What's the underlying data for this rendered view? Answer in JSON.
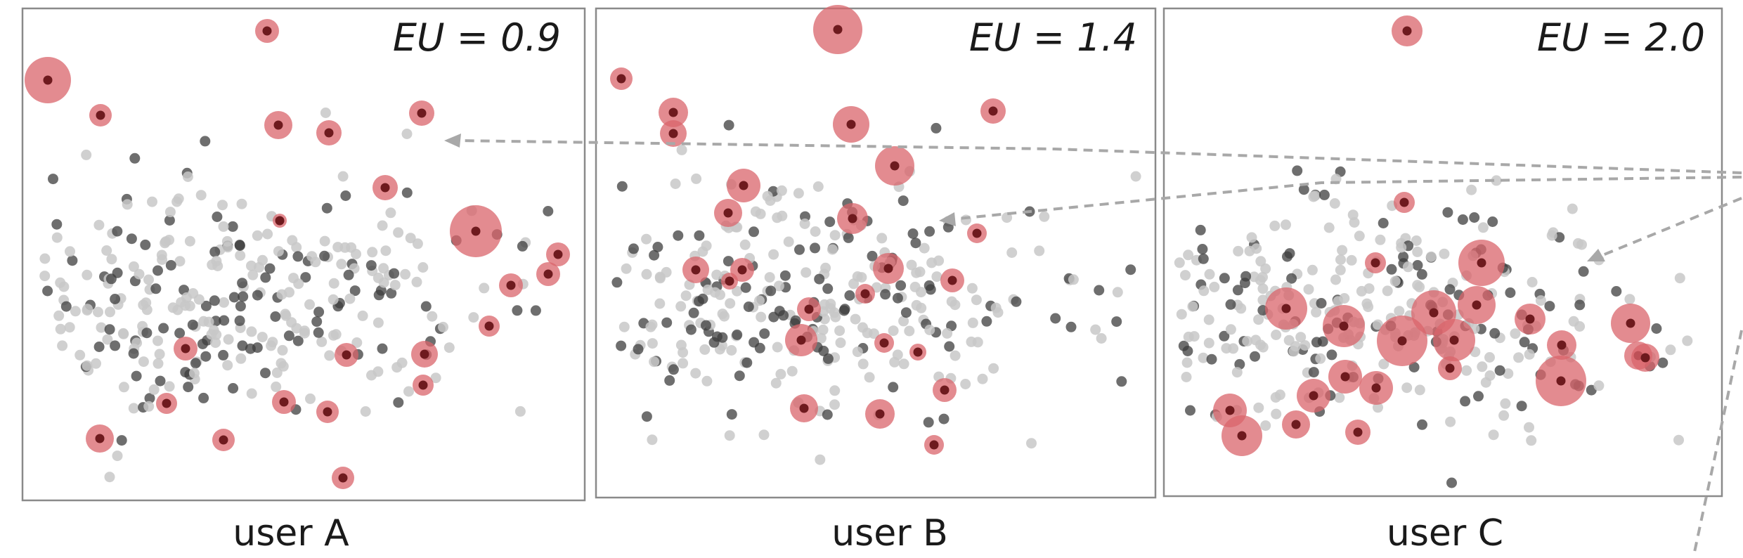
{
  "panels": [
    {
      "id": "a",
      "user": "user A",
      "eu": "EU = 0.9"
    },
    {
      "id": "b",
      "user": "user B",
      "eu": "EU = 1.4"
    },
    {
      "id": "c",
      "user": "user C",
      "eu": "EU = 2.0"
    }
  ],
  "colors": {
    "highlight_fill": "#d9646b",
    "highlight_core": "#6e1a1e",
    "point_dark": "#3d3d3d",
    "point_light": "#c8c8c8",
    "frame": "#8a8a8a",
    "arrow": "#a8a8a8"
  }
}
